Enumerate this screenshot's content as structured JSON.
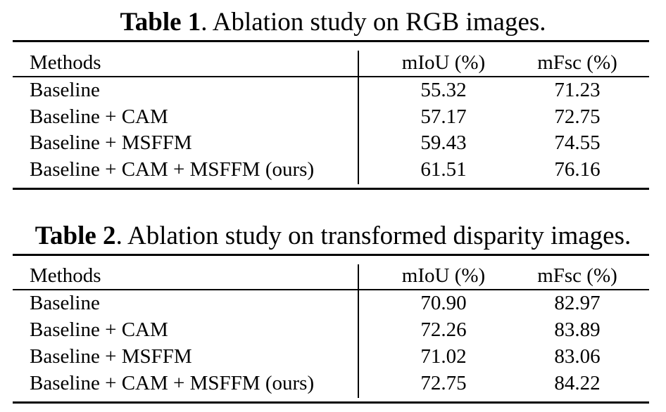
{
  "tables": [
    {
      "label": "Table 1",
      "caption": ". Ablation study on RGB images.",
      "headers": [
        "Methods",
        "mIoU (%)",
        "mFsc (%)"
      ],
      "rows": [
        [
          "Baseline",
          "55.32",
          "71.23"
        ],
        [
          "Baseline + CAM",
          "57.17",
          "72.75"
        ],
        [
          "Baseline + MSFFM",
          "59.43",
          "74.55"
        ],
        [
          "Baseline + CAM + MSFFM (ours)",
          "61.51",
          "76.16"
        ]
      ]
    },
    {
      "label": "Table 2",
      "caption": ". Ablation study on transformed disparity images.",
      "headers": [
        "Methods",
        "mIoU (%)",
        "mFsc (%)"
      ],
      "rows": [
        [
          "Baseline",
          "70.90",
          "82.97"
        ],
        [
          "Baseline + CAM",
          "72.26",
          "83.89"
        ],
        [
          "Baseline + MSFFM",
          "71.02",
          "83.06"
        ],
        [
          "Baseline + CAM + MSFFM (ours)",
          "72.75",
          "84.22"
        ]
      ]
    }
  ]
}
